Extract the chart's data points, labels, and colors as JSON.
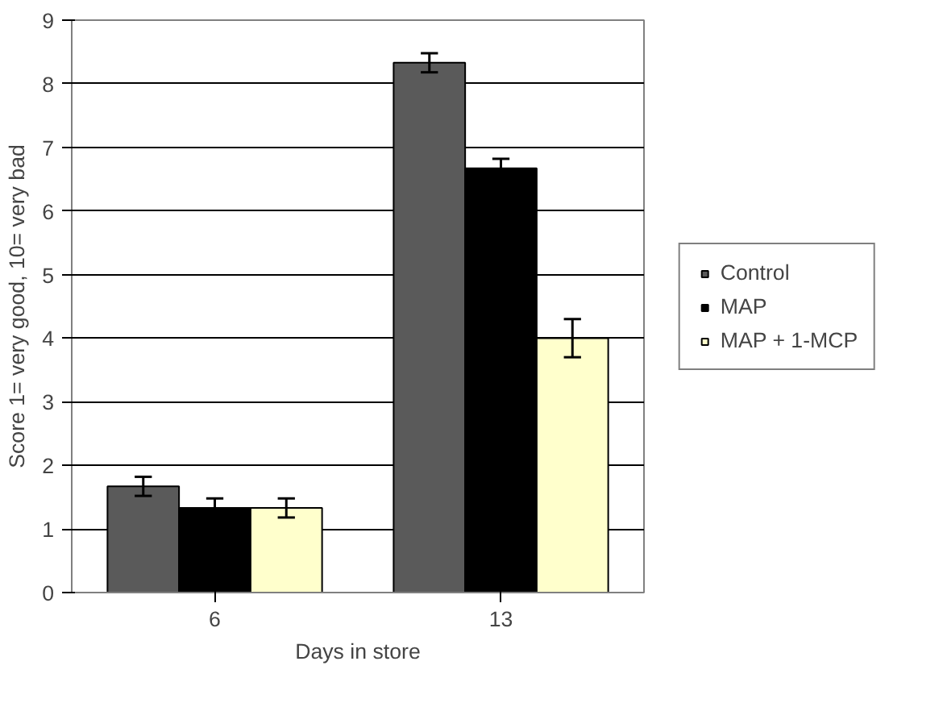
{
  "chart_data": {
    "type": "bar",
    "xlabel": "Days in store",
    "ylabel": "Score 1= very good, 10= very bad",
    "categories": [
      "6",
      "13"
    ],
    "series": [
      {
        "name": "Control",
        "color": "#5a5a5a",
        "values": [
          1.67,
          8.33
        ],
        "errors": [
          0.15,
          0.15
        ]
      },
      {
        "name": "MAP",
        "color": "#000000",
        "values": [
          1.33,
          6.67
        ],
        "errors": [
          0.15,
          0.15
        ]
      },
      {
        "name": "MAP + 1-MCP",
        "color": "#ffffcc",
        "values": [
          1.33,
          4.0
        ],
        "errors": [
          0.15,
          0.3
        ]
      }
    ],
    "ylim": [
      0,
      9
    ],
    "yticks": [
      0,
      1,
      2,
      3,
      4,
      5,
      6,
      7,
      8,
      9
    ],
    "grid": "y",
    "legend": "right"
  }
}
